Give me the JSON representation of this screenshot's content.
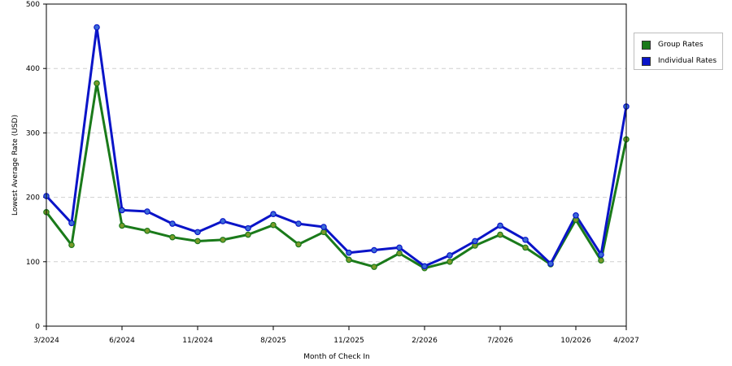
{
  "chart_data": {
    "type": "line",
    "xlabel": "Month of Check In",
    "ylabel": "Lowest Average Rate (USD)",
    "ylim": [
      0,
      500
    ],
    "yticks": [
      0,
      100,
      200,
      300,
      400,
      500
    ],
    "grid": "horizontal dashed",
    "legend_position": "right",
    "x_tick_labels": [
      "3/2024",
      "6/2024",
      "11/2024",
      "8/2025",
      "11/2025",
      "2/2026",
      "7/2026",
      "10/2026",
      "4/2027"
    ],
    "x_tick_indices": [
      0,
      3,
      6,
      9,
      12,
      15,
      18,
      21,
      23
    ],
    "series": [
      {
        "name": "Group Rates",
        "color": "#1a7a1a",
        "marker_color": "#7a9a2a",
        "values": [
          177,
          126,
          377,
          156,
          148,
          138,
          132,
          134,
          142,
          157,
          127,
          146,
          103,
          92,
          113,
          90,
          100,
          125,
          142,
          122,
          96,
          165,
          102,
          290
        ]
      },
      {
        "name": "Individual Rates",
        "color": "#0a14c8",
        "marker_color": "#3a6ad8",
        "values": [
          202,
          160,
          464,
          180,
          178,
          159,
          146,
          163,
          152,
          174,
          159,
          154,
          114,
          118,
          122,
          93,
          110,
          132,
          156,
          134,
          97,
          172,
          111,
          341
        ]
      }
    ]
  }
}
